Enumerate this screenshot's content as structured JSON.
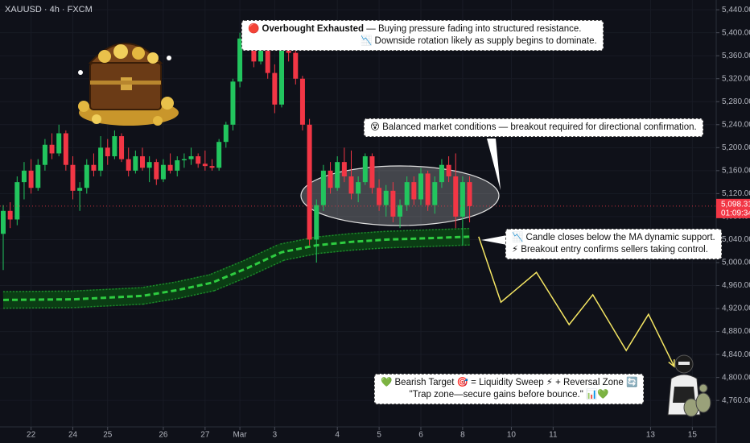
{
  "chart_data": {
    "type": "candlestick",
    "title": "XAUUSD · 4h · FXCM",
    "x": [
      0,
      1,
      2,
      3,
      4,
      5,
      6,
      7,
      8,
      9,
      10,
      11,
      12,
      13,
      14,
      15,
      16,
      17,
      18,
      19,
      20,
      21,
      22,
      23,
      24,
      25,
      26,
      27,
      28,
      29,
      30,
      31,
      32,
      33,
      34,
      35,
      36,
      37,
      38,
      39,
      40,
      41,
      42,
      43,
      44,
      45,
      46,
      47,
      48,
      49,
      50,
      51,
      52,
      53,
      54,
      55,
      56,
      57,
      58,
      59,
      60,
      61,
      62,
      63,
      64,
      65,
      66,
      67
    ],
    "open": [
      5050,
      5090,
      5075,
      5140,
      5160,
      5130,
      5170,
      5205,
      5190,
      5225,
      5170,
      5125,
      5130,
      5170,
      5160,
      5200,
      5185,
      5220,
      5180,
      5160,
      5185,
      5165,
      5175,
      5145,
      5170,
      5160,
      5178,
      5180,
      5185,
      5172,
      5168,
      5165,
      5210,
      5240,
      5315,
      5390,
      5395,
      5350,
      5405,
      5330,
      5275,
      5370,
      5365,
      5320,
      5240,
      5040,
      5100,
      5160,
      5130,
      5175,
      5150,
      5120,
      5140,
      5185,
      5130,
      5100,
      5125,
      5080,
      5100,
      5140,
      5110,
      5155,
      5100,
      5140,
      5170,
      5150,
      5080,
      5140
    ],
    "high": [
      5100,
      5105,
      5150,
      5175,
      5180,
      5180,
      5215,
      5225,
      5240,
      5230,
      5185,
      5140,
      5180,
      5190,
      5220,
      5215,
      5230,
      5225,
      5200,
      5195,
      5200,
      5185,
      5180,
      5180,
      5190,
      5185,
      5190,
      5200,
      5190,
      5195,
      5180,
      5215,
      5245,
      5320,
      5400,
      5420,
      5405,
      5415,
      5410,
      5345,
      5380,
      5385,
      5370,
      5325,
      5250,
      5110,
      5170,
      5175,
      5185,
      5200,
      5195,
      5150,
      5190,
      5190,
      5145,
      5135,
      5140,
      5110,
      5150,
      5150,
      5165,
      5160,
      5150,
      5180,
      5185,
      5190,
      5150,
      5150
    ],
    "low": [
      4987,
      5060,
      5065,
      5110,
      5120,
      5125,
      5160,
      5180,
      5185,
      5160,
      5110,
      5090,
      5120,
      5150,
      5150,
      5170,
      5180,
      5175,
      5150,
      5155,
      5160,
      5140,
      5135,
      5140,
      5155,
      5150,
      5165,
      5170,
      5165,
      5160,
      5160,
      5160,
      5200,
      5230,
      5305,
      5370,
      5340,
      5345,
      5320,
      5260,
      5270,
      5350,
      5310,
      5230,
      5030,
      5000,
      5090,
      5120,
      5125,
      5140,
      5110,
      5105,
      5135,
      5120,
      5090,
      5080,
      5070,
      5060,
      5090,
      5100,
      5100,
      5090,
      5085,
      5130,
      5140,
      5060,
      5030,
      5070
    ],
    "close": [
      5090,
      5075,
      5140,
      5160,
      5130,
      5170,
      5205,
      5190,
      5225,
      5170,
      5125,
      5130,
      5170,
      5160,
      5200,
      5185,
      5220,
      5180,
      5160,
      5185,
      5165,
      5175,
      5145,
      5170,
      5160,
      5178,
      5180,
      5185,
      5172,
      5168,
      5165,
      5210,
      5240,
      5315,
      5390,
      5395,
      5350,
      5405,
      5330,
      5275,
      5370,
      5365,
      5320,
      5240,
      5040,
      5100,
      5160,
      5130,
      5175,
      5150,
      5120,
      5140,
      5185,
      5130,
      5100,
      5125,
      5080,
      5100,
      5140,
      5110,
      5155,
      5100,
      5140,
      5170,
      5150,
      5080,
      5140,
      5098.31
    ],
    "up_color": "#22c55e",
    "down_color": "#f23645",
    "xlim": [
      0,
      102.5
    ],
    "ylim": [
      4714,
      5457
    ],
    "yticks": [
      {
        "value": 4760,
        "label": "4,760.00"
      },
      {
        "value": 4800,
        "label": "4,800.00"
      },
      {
        "value": 4840,
        "label": "4,840.00"
      },
      {
        "value": 4880,
        "label": "4,880.00"
      },
      {
        "value": 4920,
        "label": "4,920.00"
      },
      {
        "value": 4960,
        "label": "4,960.00"
      },
      {
        "value": 5000,
        "label": "5,000.00"
      },
      {
        "value": 5040,
        "label": "5,040.00"
      },
      {
        "value": 5080,
        "label": "5,080.00"
      },
      {
        "value": 5120,
        "label": "5,120.00"
      },
      {
        "value": 5160,
        "label": "5,160.00"
      },
      {
        "value": 5200,
        "label": "5,200.00"
      },
      {
        "value": 5240,
        "label": "5,240.00"
      },
      {
        "value": 5280,
        "label": "5,280.00"
      },
      {
        "value": 5320,
        "label": "5,320.00"
      },
      {
        "value": 5360,
        "label": "5,360.00"
      },
      {
        "value": 5400,
        "label": "5,400.00"
      },
      {
        "value": 5440,
        "label": "5,440.00"
      }
    ],
    "xticks": [
      {
        "value": 4,
        "label": "22"
      },
      {
        "value": 10,
        "label": "24"
      },
      {
        "value": 15,
        "label": "25"
      },
      {
        "value": 23,
        "label": "26"
      },
      {
        "value": 29,
        "label": "27"
      },
      {
        "value": 34,
        "label": "Mar"
      },
      {
        "value": 39,
        "label": "3"
      },
      {
        "value": 48,
        "label": "4"
      },
      {
        "value": 54,
        "label": "5"
      },
      {
        "value": 60,
        "label": "6"
      },
      {
        "value": 66,
        "label": "8"
      },
      {
        "value": 73,
        "label": "10"
      },
      {
        "value": 79,
        "label": "11"
      },
      {
        "value": 93,
        "label": "13"
      },
      {
        "value": 99,
        "label": "15"
      }
    ],
    "grid": true,
    "last_price": {
      "value": 5098.31,
      "label": "5,098.31"
    },
    "countdown": "01:09:34",
    "ma": {
      "color": "#2ecc40",
      "x": [
        0,
        10,
        20,
        25,
        30,
        35,
        40,
        45,
        50,
        55,
        60,
        67
      ],
      "values": [
        4935,
        4936,
        4942,
        4952,
        4965,
        4990,
        5018,
        5030,
        5036,
        5040,
        5042,
        5045
      ]
    },
    "projection": {
      "color": "#f5e663",
      "x": [
        68.3,
        71.5,
        76.6,
        81.3,
        84.7,
        89.5,
        92.7,
        96.4
      ],
      "values": [
        5045,
        4931,
        4983,
        4892,
        4944,
        4847,
        4910,
        4819
      ]
    },
    "annotations": [
      {
        "lead": "🔴",
        "heading": "Overbought Exhausted",
        "lines": [
          "— Buying pressure fading into structured resistance.",
          "📉 Downside rotation likely as supply begins to dominate."
        ]
      },
      {
        "lines": [
          "😵 Balanced market conditions — breakout required for directional confirmation."
        ]
      },
      {
        "lines": [
          "📉 Candle closes below the MA dynamic support.",
          "⚡ Breakout entry confirms sellers taking control."
        ]
      },
      {
        "lines": [
          "💚 Bearish Target 🎯 = Liquidity Sweep ⚡ + Reversal Zone 🔄",
          "\"Trap zone—secure gains before bounce.\" 📊💚"
        ]
      }
    ]
  }
}
